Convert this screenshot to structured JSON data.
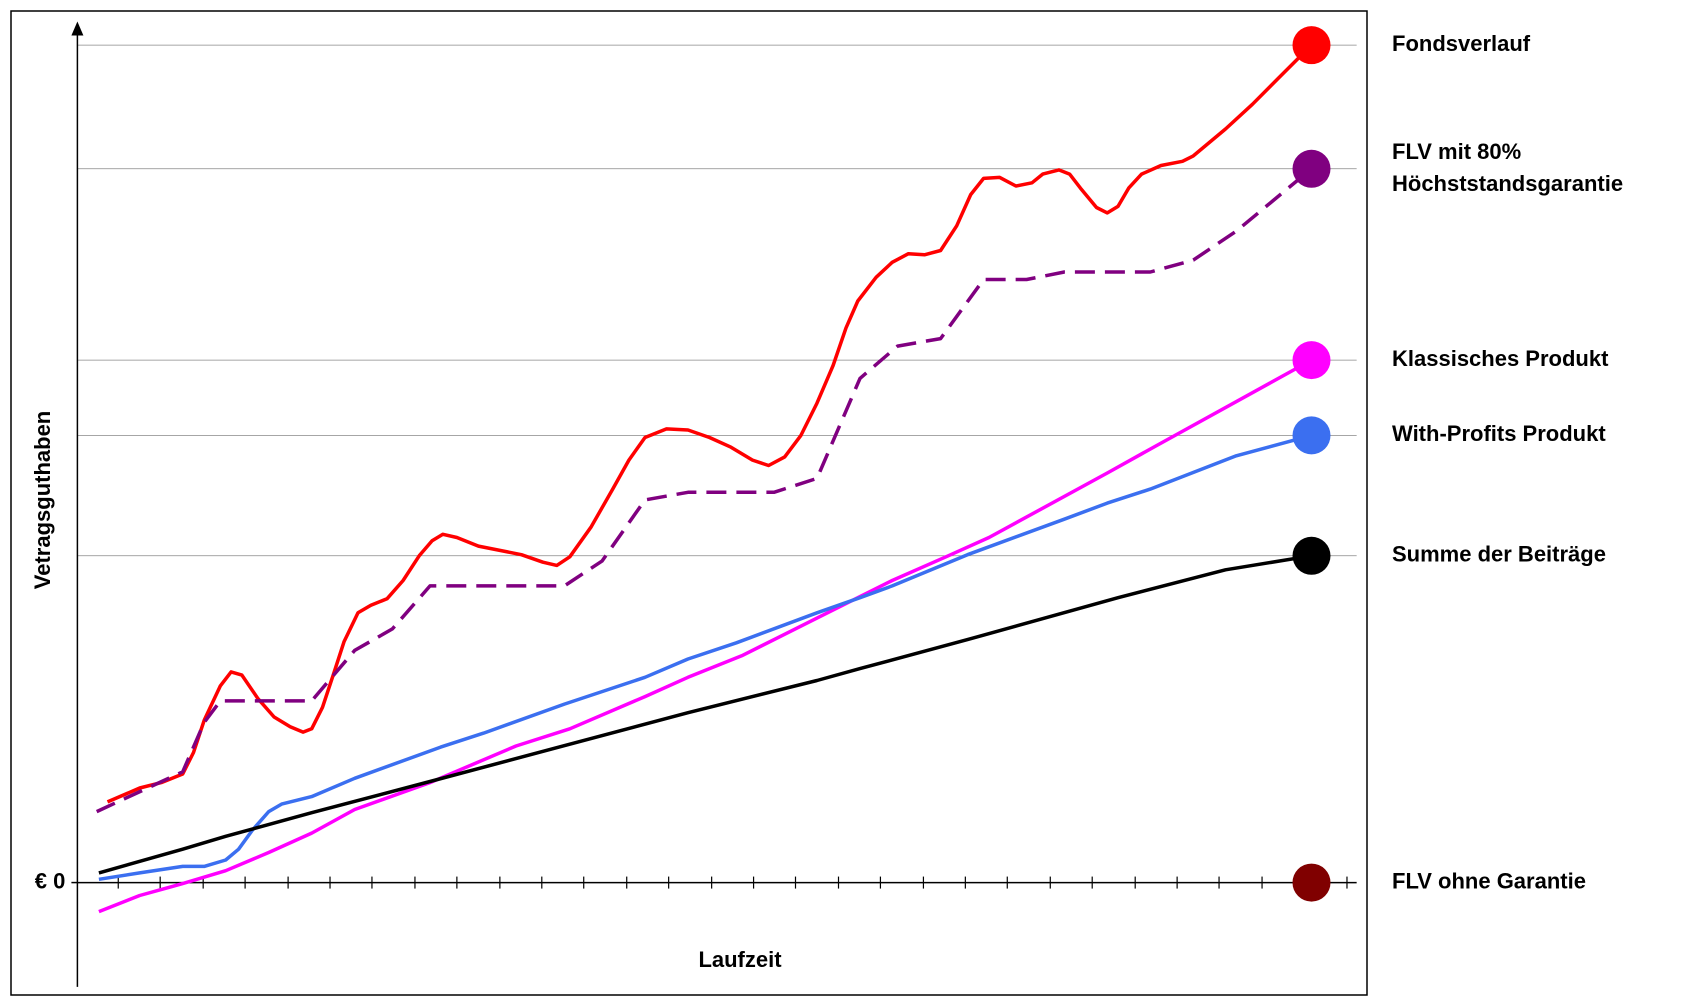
{
  "chart_data": {
    "type": "line",
    "xlabel": "Laufzeit",
    "ylabel": "Vetragsguthaben",
    "xlim": [
      -38,
      1152
    ],
    "ylim": [
      -97,
      801
    ],
    "xticks": [
      0,
      39,
      79,
      118,
      158,
      197,
      236,
      276,
      315,
      355,
      394,
      433,
      473,
      512,
      552,
      591,
      630,
      670,
      709,
      749,
      788,
      827,
      867,
      906,
      946,
      985,
      1024,
      1064,
      1103,
      1143
    ],
    "yticks": [
      {
        "value": 0,
        "label": "€ 0"
      }
    ],
    "grid": true,
    "legend": "right",
    "series": [
      {
        "name": "Fondsverlauf",
        "color": "#ff0000",
        "style": "solid",
        "x": [
          -10,
          20,
          40,
          60,
          70,
          80,
          95,
          105,
          115,
          130,
          145,
          160,
          172,
          180,
          190,
          200,
          210,
          223,
          235,
          250,
          265,
          280,
          292,
          302,
          315,
          335,
          375,
          395,
          408,
          420,
          440,
          460,
          475,
          490,
          510,
          530,
          550,
          570,
          590,
          605,
          620,
          635,
          650,
          665,
          677,
          688,
          705,
          720,
          735,
          750,
          765,
          780,
          793,
          805,
          820,
          835,
          850,
          860,
          875,
          885,
          895,
          910,
          920,
          930,
          940,
          952,
          970,
          990,
          1000,
          1030,
          1055,
          1080,
          1110
        ],
        "values": [
          75,
          88,
          93,
          101,
          121,
          151,
          183,
          196,
          193,
          171,
          154,
          145,
          140,
          143,
          163,
          193,
          224,
          251,
          258,
          264,
          281,
          304,
          318,
          324,
          321,
          313,
          305,
          298,
          295,
          303,
          331,
          366,
          393,
          414,
          422,
          421,
          414,
          405,
          393,
          388,
          396,
          416,
          446,
          481,
          516,
          541,
          563,
          577,
          585,
          584,
          588,
          611,
          640,
          655,
          656,
          648,
          651,
          659,
          663,
          659,
          646,
          628,
          623,
          629,
          646,
          659,
          667,
          671,
          676,
          701,
          724,
          749,
          779
        ]
      },
      {
        "name": "FLV mit 80%\nHöchststandsgarantie",
        "color": "#800080",
        "style": "dashed",
        "x": [
          -20,
          60,
          80,
          95,
          180,
          220,
          255,
          290,
          415,
          450,
          490,
          530,
          610,
          650,
          690,
          725,
          765,
          805,
          845,
          880,
          960,
          1000,
          1040,
          1110
        ],
        "values": [
          66,
          103,
          149,
          169,
          169,
          216,
          236,
          276,
          276,
          299,
          356,
          363,
          363,
          376,
          469,
          499,
          506,
          561,
          561,
          568,
          568,
          579,
          606,
          664
        ]
      },
      {
        "name": "Klassisches Produkt",
        "color": "#ff00ff",
        "style": "solid",
        "x": [
          -18,
          20,
          60,
          100,
          140,
          180,
          220,
          290,
          370,
          420,
          490,
          530,
          580,
          650,
          720,
          770,
          810,
          920,
          965,
          1110
        ],
        "values": [
          -27,
          -12,
          -1,
          11,
          28,
          46,
          68,
          93,
          127,
          143,
          173,
          191,
          211,
          246,
          281,
          303,
          321,
          381,
          406,
          486
        ]
      },
      {
        "name": "With-Profits Produkt",
        "color": "#3b6ff0",
        "style": "solid",
        "x": [
          -18,
          20,
          60,
          80,
          100,
          112,
          125,
          140,
          152,
          180,
          220,
          300,
          340,
          415,
          490,
          530,
          575,
          650,
          690,
          720,
          790,
          880,
          920,
          960,
          1040,
          1110
        ],
        "values": [
          3,
          9,
          15,
          15,
          21,
          31,
          49,
          66,
          73,
          80,
          97,
          126,
          139,
          166,
          191,
          208,
          223,
          251,
          265,
          276,
          305,
          338,
          353,
          366,
          397,
          416
        ]
      },
      {
        "name": "Summe der Beiträge",
        "color": "#000000",
        "style": "solid",
        "x": [
          -18,
          60,
          100,
          180,
          290,
          410,
          530,
          650,
          690,
          790,
          930,
          1030,
          1110
        ],
        "values": [
          9,
          31,
          43,
          65,
          94,
          126,
          158,
          188,
          199,
          226,
          265,
          291,
          304
        ]
      },
      {
        "name": "FLV ohne Garantie",
        "color": "#800000",
        "style": "none",
        "x": [
          1110
        ],
        "values": [
          0
        ]
      }
    ]
  }
}
